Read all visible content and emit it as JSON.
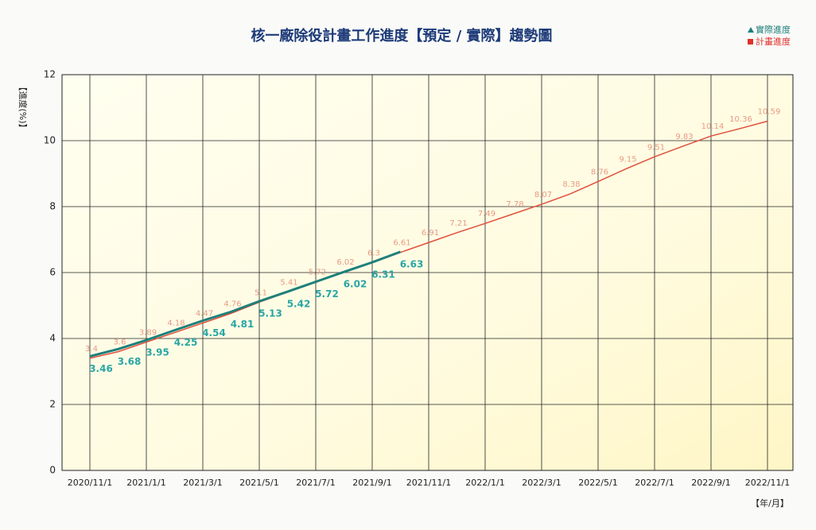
{
  "chart_data": {
    "type": "line",
    "title": "核一廠除役計畫工作進度【預定 / 實際】趨勢圖",
    "y_label": "【進度(%)】",
    "x_label": "【年/月】",
    "categories": [
      "2020/11/1",
      null,
      "2021/1/1",
      null,
      "2021/3/1",
      null,
      "2021/5/1",
      null,
      "2021/7/1",
      null,
      "2021/9/1",
      null,
      "2021/11/1",
      null,
      "2022/1/1",
      null,
      "2022/3/1",
      null,
      "2022/5/1",
      null,
      "2022/7/1",
      null,
      "2022/9/1",
      null,
      "2022/11/1"
    ],
    "series": [
      {
        "name": "實際進度",
        "color": "#1e7f7a",
        "label_color": "#2aa6a6",
        "values": [
          3.46,
          3.68,
          3.95,
          4.25,
          4.54,
          4.81,
          5.13,
          5.42,
          5.72,
          6.02,
          6.31,
          6.63,
          null,
          null,
          null,
          null,
          null,
          null,
          null,
          null,
          null,
          null,
          null,
          null,
          null
        ]
      },
      {
        "name": "計畫進度",
        "color": "#e0503a",
        "label_color": "#e89a84",
        "values": [
          3.4,
          3.6,
          3.89,
          4.18,
          4.47,
          4.76,
          5.1,
          5.41,
          5.72,
          6.02,
          6.3,
          6.61,
          6.91,
          7.21,
          7.49,
          7.78,
          8.07,
          8.38,
          8.76,
          9.15,
          9.51,
          9.83,
          10.14,
          10.36,
          10.59
        ]
      }
    ],
    "ylim": [
      0,
      12
    ],
    "yticks": [
      0,
      2,
      4,
      6,
      8,
      10,
      12
    ],
    "grid": true
  }
}
